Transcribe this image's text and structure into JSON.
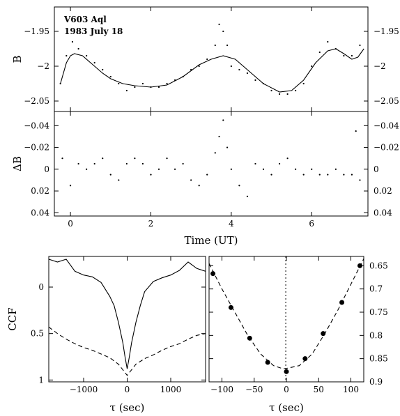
{
  "annotations": [
    "V603 Aql",
    "1983 July 18"
  ],
  "chart_data": [
    {
      "id": "light-curve",
      "type": "scatter",
      "ylabel": "B",
      "xlim": [
        -0.4,
        7.4
      ],
      "ylim": [
        -1.915,
        -2.065
      ],
      "y_inverted": true,
      "xticks": [
        "0",
        "2",
        "4",
        "6"
      ],
      "yticks": [
        "-1.95",
        "-2",
        "-2.05"
      ],
      "series": [
        {
          "kind": "points",
          "x": [
            -0.25,
            -0.1,
            0.05,
            0.2,
            0.4,
            0.6,
            0.8,
            1.0,
            1.2,
            1.4,
            1.6,
            1.8,
            2.0,
            2.2,
            2.4,
            2.6,
            2.8,
            3.0,
            3.2,
            3.4,
            3.6,
            3.7,
            3.8,
            3.9,
            4.0,
            4.2,
            4.4,
            4.6,
            4.8,
            5.0,
            5.2,
            5.4,
            5.6,
            5.8,
            6.0,
            6.2,
            6.4,
            6.6,
            6.8,
            7.0,
            7.2
          ],
          "y": [
            -2.025,
            -1.985,
            -1.965,
            -1.975,
            -1.985,
            -1.995,
            -2.005,
            -2.015,
            -2.025,
            -2.035,
            -2.03,
            -2.025,
            -2.03,
            -2.03,
            -2.025,
            -2.02,
            -2.015,
            -2.005,
            -2.0,
            -1.99,
            -1.97,
            -1.94,
            -1.95,
            -1.97,
            -2.0,
            -2.005,
            -2.01,
            -2.02,
            -2.025,
            -2.035,
            -2.04,
            -2.04,
            -2.035,
            -2.025,
            -2.0,
            -1.98,
            -1.965,
            -1.975,
            -1.985,
            -1.985,
            -1.97
          ]
        },
        {
          "kind": "fit",
          "x": [
            -0.25,
            -0.1,
            0.0,
            0.1,
            0.3,
            0.5,
            0.8,
            1.0,
            1.3,
            1.6,
            2.0,
            2.4,
            2.8,
            3.2,
            3.5,
            3.8,
            4.1,
            4.4,
            4.8,
            5.2,
            5.5,
            5.8,
            6.1,
            6.4,
            6.6,
            6.8,
            7.0,
            7.15,
            7.3
          ],
          "y": [
            -2.025,
            -1.995,
            -1.985,
            -1.982,
            -1.985,
            -1.995,
            -2.01,
            -2.018,
            -2.025,
            -2.028,
            -2.03,
            -2.027,
            -2.015,
            -1.998,
            -1.99,
            -1.985,
            -1.99,
            -2.005,
            -2.025,
            -2.037,
            -2.035,
            -2.02,
            -1.995,
            -1.978,
            -1.975,
            -1.982,
            -1.99,
            -1.987,
            -1.975
          ]
        }
      ]
    },
    {
      "id": "residuals",
      "type": "scatter",
      "ylabel": "ΔB",
      "xlabel": "Time (UT)",
      "xlim": [
        -0.4,
        7.4
      ],
      "ylim": [
        -0.053,
        0.043
      ],
      "y_inverted": true,
      "xticks": [
        "0",
        "2",
        "4",
        "6"
      ],
      "yticks": [
        "-0.04",
        "-0.02",
        "0",
        "0.02",
        "0.04"
      ],
      "series": [
        {
          "kind": "points",
          "x": [
            -0.2,
            0.0,
            0.2,
            0.4,
            0.6,
            0.8,
            1.0,
            1.2,
            1.4,
            1.6,
            1.8,
            2.0,
            2.2,
            2.4,
            2.6,
            2.8,
            3.0,
            3.2,
            3.4,
            3.6,
            3.7,
            3.8,
            3.9,
            4.0,
            4.2,
            4.4,
            4.6,
            4.8,
            5.0,
            5.2,
            5.4,
            5.6,
            5.8,
            6.0,
            6.2,
            6.4,
            6.6,
            6.8,
            7.0,
            7.1,
            7.2
          ],
          "y": [
            -0.01,
            0.015,
            -0.005,
            0.0,
            -0.005,
            -0.01,
            0.005,
            0.01,
            -0.005,
            -0.01,
            -0.005,
            0.005,
            0.0,
            -0.01,
            0.0,
            -0.005,
            0.01,
            0.015,
            0.005,
            -0.015,
            -0.03,
            -0.045,
            -0.02,
            0.0,
            0.015,
            0.025,
            -0.005,
            0.0,
            0.005,
            -0.005,
            -0.01,
            0.0,
            0.005,
            0.0,
            0.005,
            0.005,
            0.0,
            0.005,
            0.005,
            -0.035,
            0.01
          ]
        }
      ]
    },
    {
      "id": "ccf",
      "type": "line",
      "ylabel": "CCF",
      "xlabel": "τ (sec)",
      "xlim": [
        -1800,
        1800
      ],
      "ylim": [
        -0.33,
        1.02
      ],
      "xticks": [
        "-1000",
        "0",
        "1000"
      ],
      "yticks": [
        "0",
        "0.5",
        "1"
      ],
      "series": [
        {
          "kind": "dashed",
          "x": [
            -1800,
            -1600,
            -1400,
            -1200,
            -1000,
            -800,
            -600,
            -400,
            -200,
            -100,
            0,
            100,
            200,
            400,
            600,
            800,
            1000,
            1200,
            1400,
            1600,
            1800
          ],
          "y": [
            0.43,
            0.5,
            0.56,
            0.61,
            0.65,
            0.68,
            0.72,
            0.76,
            0.83,
            0.89,
            0.95,
            0.89,
            0.83,
            0.77,
            0.73,
            0.68,
            0.64,
            0.61,
            0.56,
            0.52,
            0.5
          ]
        },
        {
          "kind": "solid",
          "x": [
            -1800,
            -1600,
            -1400,
            -1200,
            -1000,
            -800,
            -600,
            -400,
            -300,
            -200,
            -100,
            -50,
            0,
            50,
            100,
            200,
            300,
            400,
            600,
            800,
            1000,
            1200,
            1400,
            1600,
            1800
          ],
          "y": [
            -0.3,
            -0.27,
            -0.3,
            -0.17,
            -0.13,
            -0.11,
            -0.05,
            0.1,
            0.2,
            0.38,
            0.6,
            0.75,
            0.88,
            0.75,
            0.6,
            0.38,
            0.2,
            0.05,
            -0.06,
            -0.1,
            -0.13,
            -0.18,
            -0.27,
            -0.2,
            -0.17
          ]
        }
      ]
    },
    {
      "id": "ccf-zoom",
      "type": "scatter",
      "xlabel": "τ (sec)",
      "xlim": [
        -120,
        120
      ],
      "ylim": [
        0.63,
        0.9
      ],
      "xticks": [
        "-100",
        "-50",
        "0",
        "50",
        "100"
      ],
      "yticks": [
        "0.65",
        "0.7",
        "0.75",
        "0.8",
        "0.85",
        "0.9"
      ],
      "vline_x": -1,
      "series": [
        {
          "kind": "points",
          "x": [
            -114,
            -86,
            -57,
            -29,
            0,
            29,
            57,
            86,
            114
          ],
          "y": [
            0.667,
            0.74,
            0.806,
            0.858,
            0.878,
            0.85,
            0.796,
            0.729,
            0.65
          ]
        },
        {
          "kind": "dashed",
          "x": [
            -120,
            -100,
            -80,
            -60,
            -40,
            -20,
            -5,
            0,
            20,
            40,
            60,
            80,
            100,
            120
          ],
          "y": [
            0.645,
            0.7,
            0.75,
            0.8,
            0.84,
            0.865,
            0.872,
            0.871,
            0.865,
            0.84,
            0.795,
            0.745,
            0.69,
            0.635
          ]
        }
      ]
    }
  ]
}
